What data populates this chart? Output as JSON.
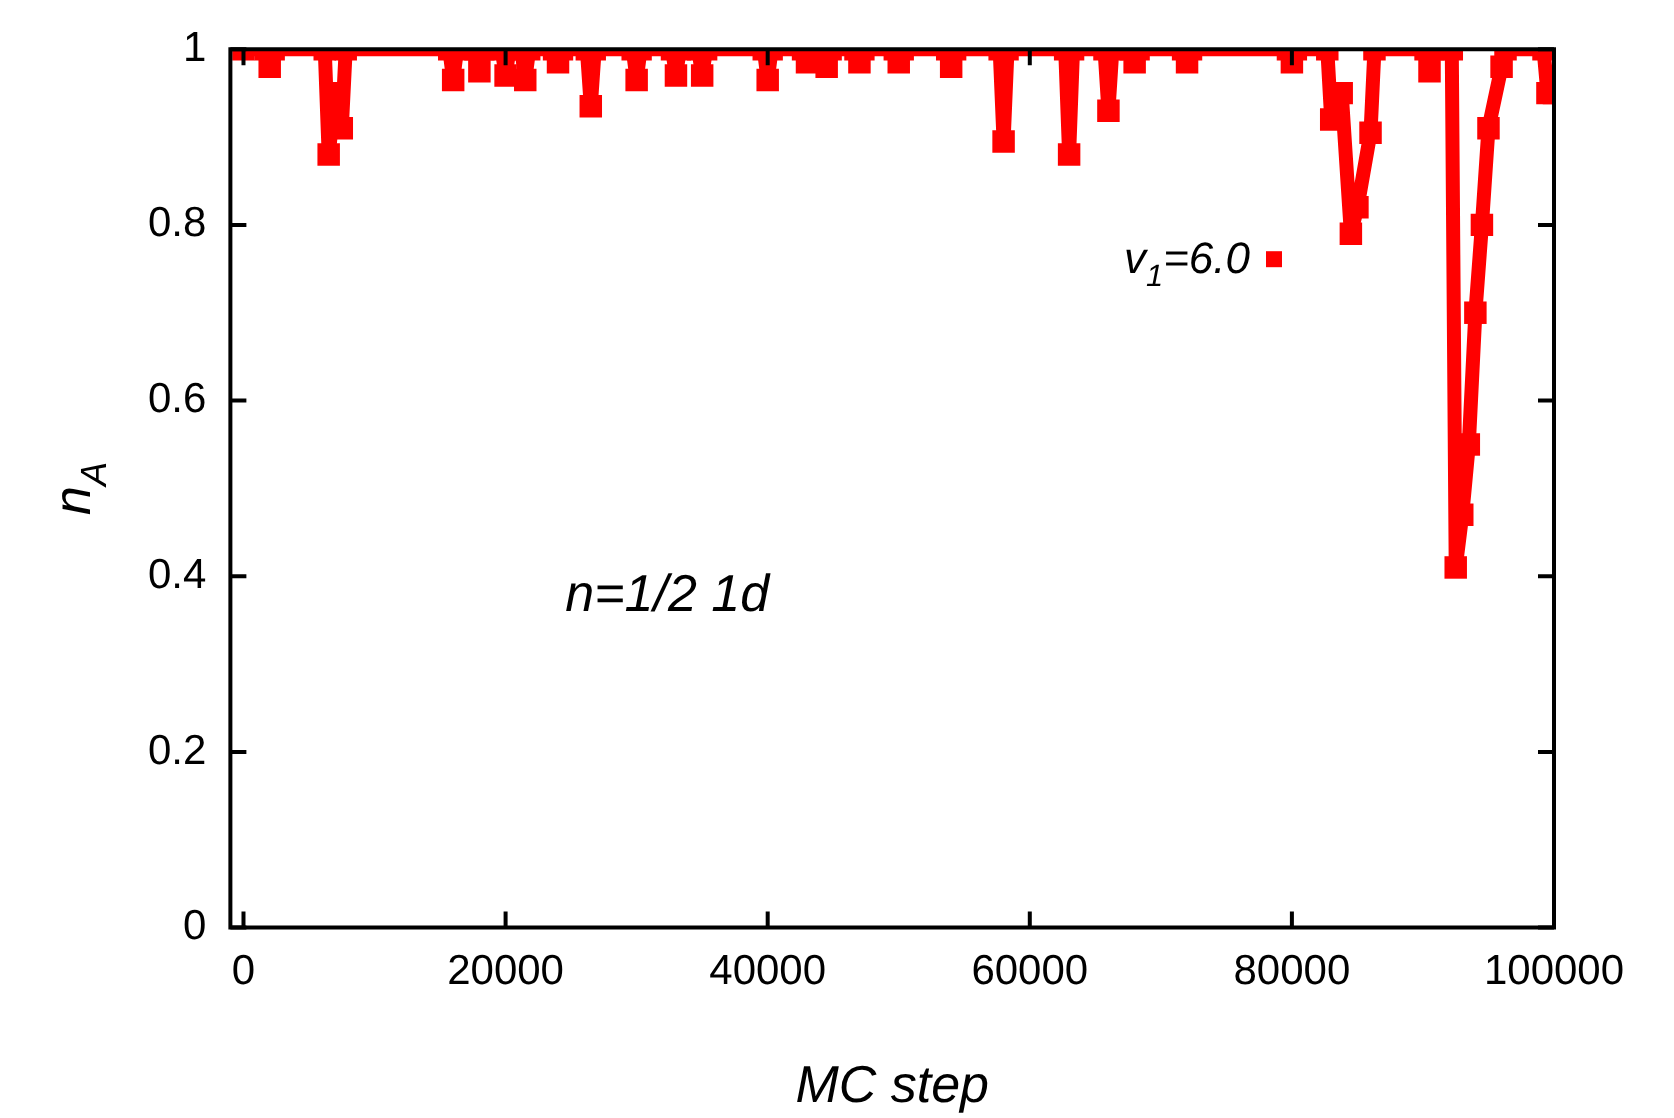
{
  "chart_data": {
    "type": "line",
    "xlabel": "MC step",
    "ylabel": "n$_{A}$",
    "annotations": [
      "n=1/2 1d"
    ],
    "xlim": [
      -1000,
      100000
    ],
    "xticks": [
      0,
      20000,
      40000,
      60000,
      80000,
      100000
    ],
    "ylim": [
      0,
      1
    ],
    "yticks": [
      0,
      0.2,
      0.4,
      0.6,
      0.8,
      1
    ],
    "grid": false,
    "legend": "top right",
    "marker": "square",
    "line_style": "solid",
    "series": [
      {
        "name": "v$_{1}$=6.0",
        "color": "#ff0000",
        "x": [
          0,
          1700,
          2000,
          2300,
          6200,
          6500,
          7000,
          7500,
          7800,
          15700,
          16000,
          16300,
          17700,
          18000,
          18300,
          19700,
          20000,
          20300,
          21200,
          21500,
          21800,
          23700,
          24000,
          24300,
          26200,
          26500,
          26800,
          29700,
          30000,
          30300,
          32700,
          33000,
          33300,
          34700,
          35000,
          35300,
          39700,
          40000,
          40300,
          42700,
          43000,
          43300,
          44200,
          44500,
          44800,
          46700,
          47000,
          47300,
          49700,
          50000,
          50300,
          53700,
          54000,
          54300,
          57700,
          58000,
          58300,
          62700,
          63000,
          63300,
          65700,
          66000,
          66300,
          67700,
          68000,
          68300,
          71700,
          72000,
          72300,
          79700,
          80000,
          80300,
          82700,
          83000,
          83800,
          84500,
          85000,
          86000,
          86300,
          90200,
          90500,
          90800,
          92200,
          92500,
          93000,
          93500,
          94000,
          94500,
          95000,
          96000,
          96300,
          99200,
          99500,
          100000
        ],
        "values": [
          1,
          1,
          0.98,
          1,
          1,
          0.88,
          0.95,
          0.91,
          1,
          1,
          0.965,
          1,
          1,
          0.975,
          1,
          1,
          0.97,
          1,
          1,
          0.965,
          1,
          1,
          0.985,
          1,
          1,
          0.935,
          1,
          1,
          0.965,
          1,
          1,
          0.97,
          1,
          1,
          0.97,
          1,
          1,
          0.965,
          1,
          1,
          0.985,
          1,
          1,
          0.98,
          1,
          1,
          0.985,
          1,
          1,
          0.985,
          1,
          1,
          0.98,
          1,
          1,
          0.895,
          1,
          1,
          0.88,
          1,
          1,
          0.93,
          1,
          1,
          0.985,
          1,
          1,
          0.985,
          1,
          1,
          0.985,
          1,
          1,
          0.92,
          0.95,
          0.79,
          0.82,
          0.905,
          1,
          1,
          0.975,
          1,
          1,
          0.41,
          0.47,
          0.55,
          0.7,
          0.8,
          0.91,
          0.98,
          1,
          1,
          0.95,
          0.95
        ]
      }
    ]
  }
}
